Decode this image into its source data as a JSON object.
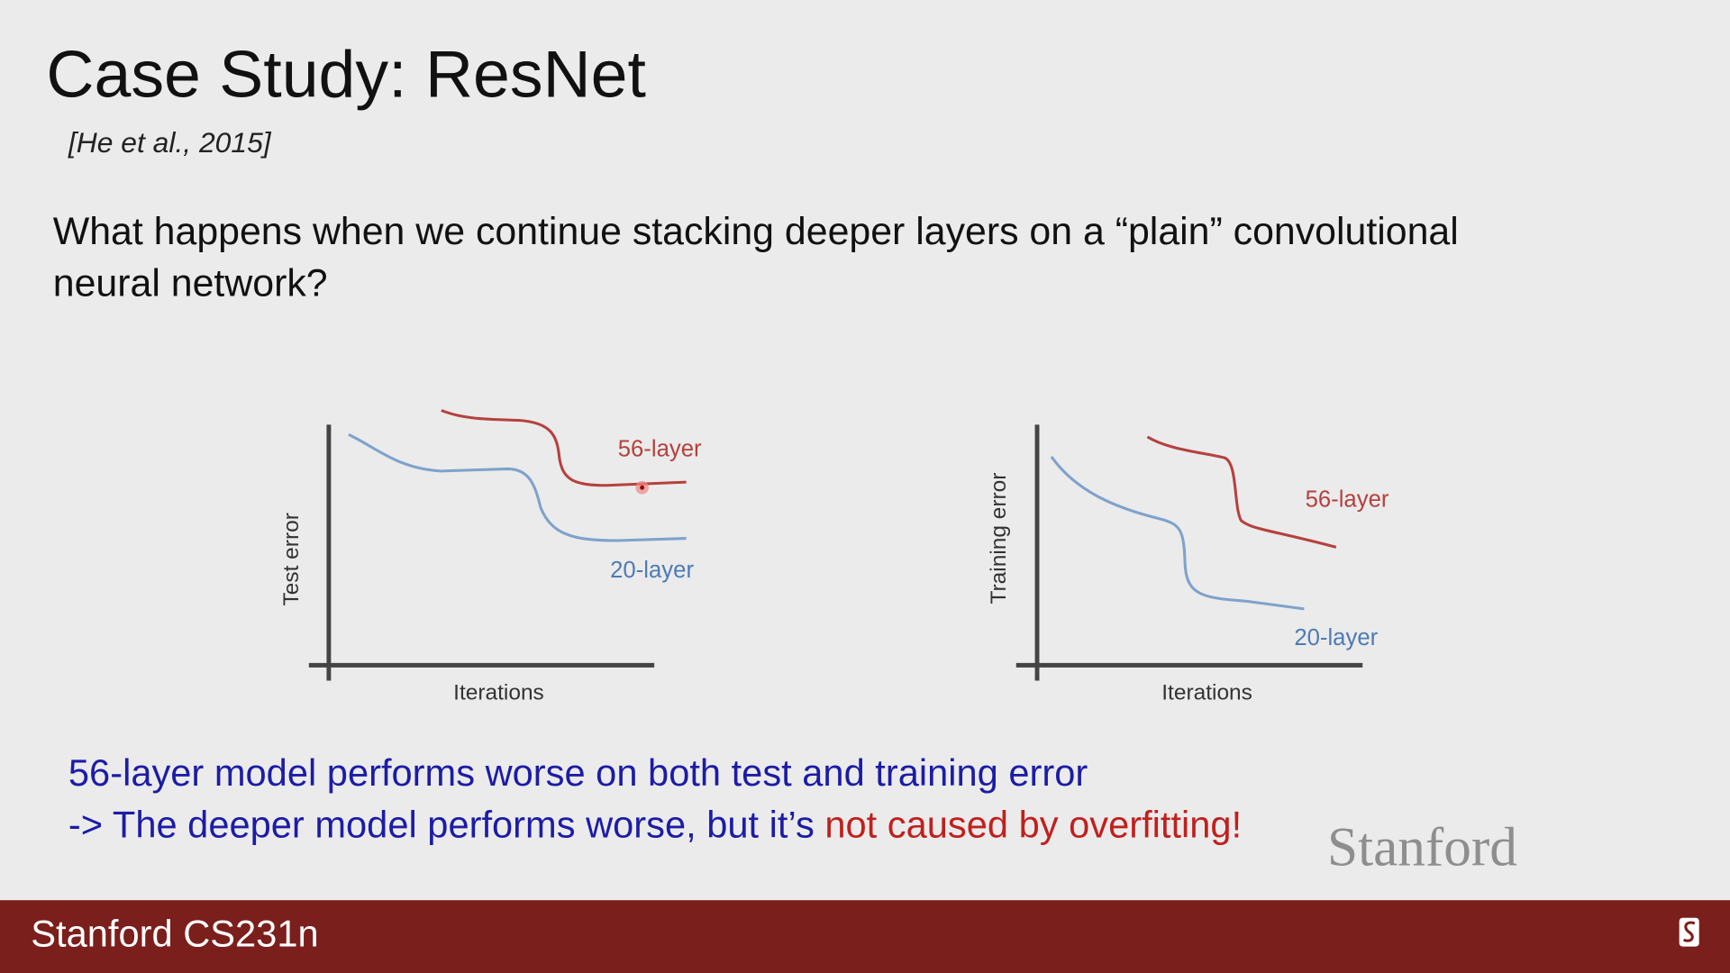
{
  "header": {
    "title": "Case Study: ResNet",
    "citation": "[He et al., 2015]"
  },
  "question": [
    "What happens when we continue stacking deeper layers on a “plain” convolutional",
    "neural network?"
  ],
  "figures": [
    {
      "y_label": "Test error",
      "x_label": "Iterations",
      "curve_labels": [
        "56-layer",
        "20-layer"
      ]
    },
    {
      "y_label": "Training error",
      "x_label": "Iterations",
      "curve_labels": [
        "56-layer",
        "20-layer"
      ]
    }
  ],
  "conclusion": {
    "line1": "56-layer model performs worse on both test and training error",
    "line2": "-> The deeper model performs worse, but it’s ",
    "line2_highlight": "not caused by overfitting!"
  },
  "watermark": "Stanford",
  "footer": {
    "course": "Stanford CS231n"
  }
}
